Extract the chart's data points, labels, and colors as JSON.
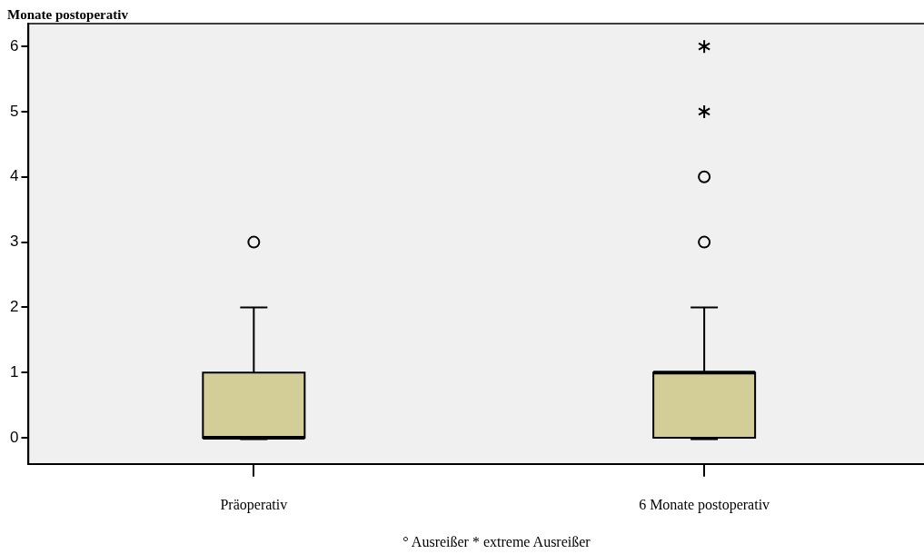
{
  "chart_data": {
    "type": "box",
    "title": "Monate postoperativ",
    "categories": [
      "Präoperativ",
      "6 Monate postoperativ"
    ],
    "color": "#d3cd98",
    "boxes": [
      {
        "low": 0,
        "q1": 0,
        "median": 0,
        "q3": 1,
        "high": 2,
        "outliers": [
          3
        ]
      },
      {
        "low": 0,
        "q1": 0,
        "median": 1,
        "q3": 1,
        "high": 2,
        "outliers": [
          3,
          4,
          5,
          6
        ]
      }
    ],
    "ylim": [
      -0.4,
      6.35
    ],
    "yticks": [
      0,
      1,
      2,
      3,
      4,
      5,
      6
    ],
    "grid": false,
    "legend": false,
    "annotations": [
      "° Ausreißer * extreme Ausreißer"
    ]
  }
}
